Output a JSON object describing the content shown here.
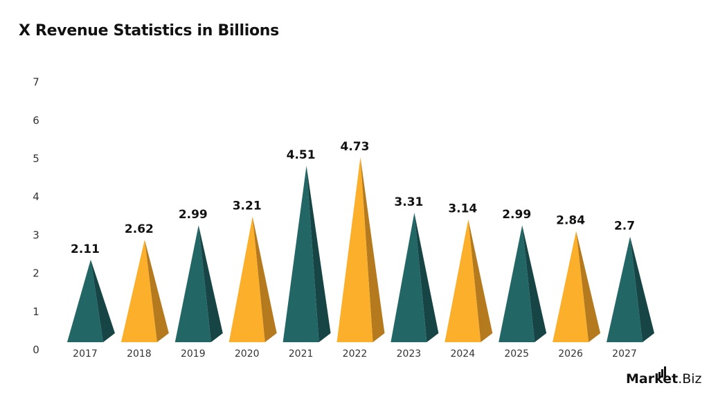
{
  "chart_data": {
    "type": "bar",
    "title": "X Revenue Statistics in Billions",
    "categories": [
      "2017",
      "2018",
      "2019",
      "2020",
      "2021",
      "2022",
      "2023",
      "2024",
      "2025",
      "2026",
      "2027"
    ],
    "values": [
      2.11,
      2.62,
      2.99,
      3.21,
      4.51,
      4.73,
      3.31,
      3.14,
      2.99,
      2.84,
      2.7
    ],
    "data_labels": [
      "2.11",
      "2.62",
      "2.99",
      "3.21",
      "4.51",
      "4.73",
      "3.31",
      "3.14",
      "2.99",
      "2.84",
      "2.7"
    ],
    "ylim": [
      0,
      7
    ],
    "yticks": [
      "0",
      "1",
      "2",
      "3",
      "4",
      "5",
      "6",
      "7"
    ],
    "xlabel": "",
    "ylabel": "",
    "grid": false,
    "mark_shape": "3d-pyramid",
    "colors": {
      "teal": "#236666",
      "teal_side": "#174444",
      "gold": "#FBAF2A",
      "gold_side": "#B47A1D"
    }
  },
  "brand": {
    "logo_main": "Market",
    "logo_suffix": ".Biz"
  }
}
